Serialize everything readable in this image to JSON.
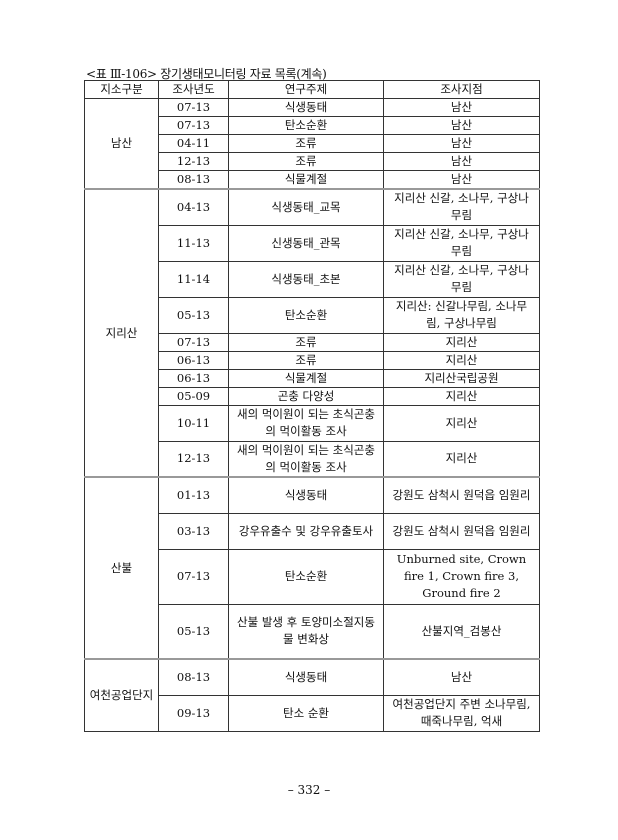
{
  "caption": "<표 Ⅲ-106> 장기생태모니터링 자료 목록(계속)",
  "headers": [
    "지소구분",
    "조사년도",
    "연구주제",
    "조사지점"
  ],
  "groups": [
    {
      "name": "남산",
      "rows": [
        {
          "year": "07-13",
          "topic": "식생동태",
          "site": "남산",
          "h": 1
        },
        {
          "year": "07-13",
          "topic": "탄소순환",
          "site": "남산",
          "h": 1
        },
        {
          "year": "04-11",
          "topic": "조류",
          "site": "남산",
          "h": 1
        },
        {
          "year": "12-13",
          "topic": "조류",
          "site": "남산",
          "h": 1
        },
        {
          "year": "08-13",
          "topic": "식물계절",
          "site": "남산",
          "h": 1
        }
      ]
    },
    {
      "name": "지리산",
      "rows": [
        {
          "year": "04-13",
          "topic": "식생동태_교목",
          "site": "지리산 신갈, 소나무, 구상나무림",
          "h": 2
        },
        {
          "year": "11-13",
          "topic": "신생동태_관목",
          "site": "지리산 신갈, 소나무, 구상나무림",
          "h": 2
        },
        {
          "year": "11-14",
          "topic": "식생동태_초본",
          "site": "지리산 신갈, 소나무, 구상나무림",
          "h": 2
        },
        {
          "year": "05-13",
          "topic": "탄소순환",
          "site": "지리산: 신갈나무림, 소나무림, 구상나무림",
          "h": 2
        },
        {
          "year": "07-13",
          "topic": "조류",
          "site": "지리산",
          "h": 1
        },
        {
          "year": "06-13",
          "topic": "조류",
          "site": "지리산",
          "h": 1
        },
        {
          "year": "06-13",
          "topic": "식물계절",
          "site": "지리산국립공원",
          "h": 1
        },
        {
          "year": "05-09",
          "topic": "곤충 다양성",
          "site": "지리산",
          "h": 1
        },
        {
          "year": "10-11",
          "topic": "새의 먹이원이 되는 초식곤충의 먹이활동 조사",
          "site": "지리산",
          "h": 2
        },
        {
          "year": "12-13",
          "topic": "새의 먹이원이 되는 초식곤충의 먹이활동 조사",
          "site": "지리산",
          "h": 2
        }
      ]
    },
    {
      "name": "산불",
      "rows": [
        {
          "year": "01-13",
          "topic": "식생동태",
          "site": "강원도 삼척시 원덕읍 임원리",
          "h": 2
        },
        {
          "year": "03-13",
          "topic": "강우유출수 및 강우유출토사",
          "site": "강원도 삼척시 원덕읍 임원리",
          "h": 2
        },
        {
          "year": "07-13",
          "topic": "탄소순환",
          "site": "Unburned site, Crown fire 1, Crown fire 3, Ground fire 2",
          "h": 3
        },
        {
          "year": "05-13",
          "topic": "산불 발생 후 토양미소절지동물 변화상",
          "site": "산불지역_검봉산",
          "h": 3
        }
      ]
    },
    {
      "name": "여천공업단지",
      "rows": [
        {
          "year": "08-13",
          "topic": "식생동태",
          "site": "남산",
          "h": 2
        },
        {
          "year": "09-13",
          "topic": "탄소 순환",
          "site": "여천공업단지 주변 소나무림, 때죽나무림, 억새",
          "h": 2
        }
      ]
    }
  ],
  "page_number": "– 332 –"
}
